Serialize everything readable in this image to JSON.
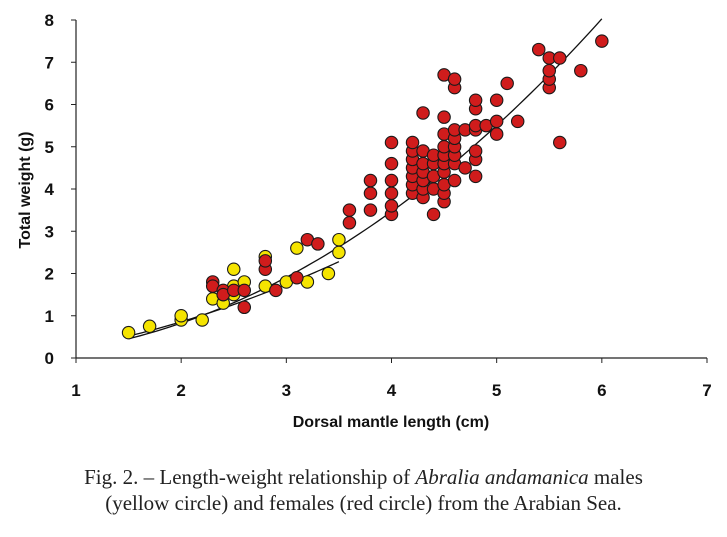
{
  "chart_data": {
    "type": "scatter",
    "xlabel": "Dorsal mantle length (cm)",
    "ylabel": "Total weight (g)",
    "xlim": [
      1,
      7
    ],
    "ylim": [
      0,
      8
    ],
    "xticks": [
      1,
      2,
      3,
      4,
      5,
      6,
      7
    ],
    "yticks": [
      0,
      1,
      2,
      3,
      4,
      5,
      6,
      7,
      8
    ],
    "grid": false,
    "series": [
      {
        "color": "#f5e400",
        "points": [
          [
            1.5,
            0.6
          ],
          [
            1.7,
            0.75
          ],
          [
            2.0,
            0.9
          ],
          [
            2.0,
            1.0
          ],
          [
            2.2,
            0.9
          ],
          [
            2.3,
            1.4
          ],
          [
            2.4,
            1.3
          ],
          [
            2.4,
            1.5
          ],
          [
            2.5,
            1.5
          ],
          [
            2.5,
            1.7
          ],
          [
            2.5,
            2.1
          ],
          [
            2.6,
            1.8
          ],
          [
            2.8,
            1.7
          ],
          [
            2.8,
            2.4
          ],
          [
            3.0,
            1.8
          ],
          [
            3.1,
            2.6
          ],
          [
            3.2,
            1.8
          ],
          [
            3.4,
            2.0
          ],
          [
            3.5,
            2.5
          ],
          [
            3.5,
            2.8
          ]
        ]
      },
      {
        "color": "#d01c1c",
        "points": [
          [
            2.3,
            1.8
          ],
          [
            2.3,
            1.7
          ],
          [
            2.4,
            1.6
          ],
          [
            2.4,
            1.5
          ],
          [
            2.5,
            1.6
          ],
          [
            2.6,
            1.6
          ],
          [
            2.6,
            1.2
          ],
          [
            2.8,
            2.1
          ],
          [
            2.8,
            2.3
          ],
          [
            2.9,
            1.6
          ],
          [
            3.1,
            1.9
          ],
          [
            3.2,
            2.8
          ],
          [
            3.3,
            2.7
          ],
          [
            3.6,
            3.2
          ],
          [
            3.6,
            3.5
          ],
          [
            3.8,
            3.5
          ],
          [
            3.8,
            3.9
          ],
          [
            3.8,
            4.2
          ],
          [
            4.0,
            3.4
          ],
          [
            4.0,
            3.6
          ],
          [
            4.0,
            3.9
          ],
          [
            4.0,
            4.2
          ],
          [
            4.0,
            4.6
          ],
          [
            4.0,
            5.1
          ],
          [
            4.2,
            3.9
          ],
          [
            4.2,
            4.1
          ],
          [
            4.2,
            4.3
          ],
          [
            4.2,
            4.5
          ],
          [
            4.2,
            4.7
          ],
          [
            4.2,
            4.9
          ],
          [
            4.2,
            5.1
          ],
          [
            4.3,
            3.8
          ],
          [
            4.3,
            4.0
          ],
          [
            4.3,
            4.2
          ],
          [
            4.3,
            4.4
          ],
          [
            4.3,
            4.6
          ],
          [
            4.3,
            4.9
          ],
          [
            4.3,
            5.8
          ],
          [
            4.4,
            3.4
          ],
          [
            4.4,
            4.0
          ],
          [
            4.4,
            4.3
          ],
          [
            4.4,
            4.6
          ],
          [
            4.4,
            4.8
          ],
          [
            4.5,
            3.7
          ],
          [
            4.5,
            3.9
          ],
          [
            4.5,
            4.1
          ],
          [
            4.5,
            4.4
          ],
          [
            4.5,
            4.6
          ],
          [
            4.5,
            4.8
          ],
          [
            4.5,
            5.0
          ],
          [
            4.5,
            5.3
          ],
          [
            4.5,
            5.7
          ],
          [
            4.5,
            6.7
          ],
          [
            4.6,
            4.2
          ],
          [
            4.6,
            4.6
          ],
          [
            4.6,
            4.8
          ],
          [
            4.6,
            5.0
          ],
          [
            4.6,
            5.2
          ],
          [
            4.6,
            5.4
          ],
          [
            4.6,
            6.4
          ],
          [
            4.6,
            6.6
          ],
          [
            4.7,
            4.5
          ],
          [
            4.7,
            5.4
          ],
          [
            4.8,
            4.3
          ],
          [
            4.8,
            4.7
          ],
          [
            4.8,
            4.9
          ],
          [
            4.8,
            5.4
          ],
          [
            4.8,
            5.5
          ],
          [
            4.8,
            5.9
          ],
          [
            4.8,
            6.1
          ],
          [
            4.9,
            5.5
          ],
          [
            5.0,
            5.3
          ],
          [
            5.0,
            5.6
          ],
          [
            5.0,
            6.1
          ],
          [
            5.1,
            6.5
          ],
          [
            5.2,
            5.6
          ],
          [
            5.4,
            7.3
          ],
          [
            5.5,
            6.4
          ],
          [
            5.5,
            6.6
          ],
          [
            5.5,
            6.8
          ],
          [
            5.5,
            7.1
          ],
          [
            5.6,
            5.1
          ],
          [
            5.6,
            7.1
          ],
          [
            5.8,
            6.8
          ],
          [
            6.0,
            7.5
          ]
        ]
      }
    ],
    "trendlines": [
      {
        "a": 0.2547,
        "b": 1.7497,
        "x_range": [
          1.5,
          3.5
        ],
        "color": "#111111"
      },
      {
        "a": 0.1963,
        "b": 2.0711,
        "x_range": [
          1.5,
          6.0
        ],
        "color": "#111111"
      }
    ]
  },
  "caption": {
    "line1_pre": "Fig. 2. – Length-weight relationship of ",
    "species": "Abralia andamanica",
    "line1_post": " males",
    "line2": "(yellow circle) and females (red circle) from the Arabian Sea."
  }
}
